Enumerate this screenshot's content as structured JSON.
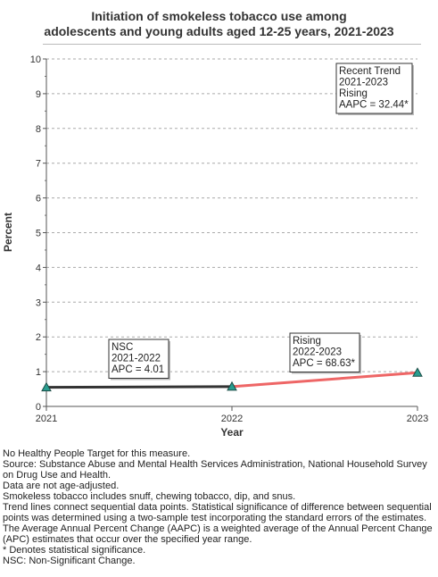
{
  "title_lines": [
    "Initiation of smokeless tobacco use among",
    "adolescents and young adults aged 12-25 years, 2021-2023"
  ],
  "chart_data": {
    "type": "line",
    "title": "Initiation of smokeless tobacco use among adolescents and young adults aged 12-25 years, 2021-2023",
    "xlabel": "Year",
    "ylabel": "Percent",
    "x": [
      2021,
      2022,
      2023
    ],
    "values": [
      0.55,
      0.57,
      0.97
    ],
    "ylim": [
      0,
      10
    ],
    "yticks": [
      0,
      1,
      2,
      3,
      4,
      5,
      6,
      7,
      8,
      9,
      10
    ],
    "xticks": [
      "2021",
      "2022",
      "2023"
    ],
    "grid": "horizontal dashed",
    "segments": [
      {
        "from": 2021,
        "to": 2022,
        "color": "#333333",
        "label_lines": [
          "NSC",
          "2021-2022",
          "APC =  4.01"
        ]
      },
      {
        "from": 2022,
        "to": 2023,
        "color": "#ee6666",
        "label_lines": [
          "Rising",
          "2022-2023",
          "APC = 68.63*"
        ]
      }
    ],
    "trend_box_lines": [
      "Recent Trend",
      "2021-2023",
      "Rising",
      "AAPC = 32.44*"
    ],
    "marker_color": "#2a9d8f"
  },
  "notes": [
    "No Healthy People Target for this measure.",
    "Source: Substance Abuse and Mental Health Services Administration, National Household Survey on Drug Use and Health.",
    "Data are not age-adjusted.",
    "Smokeless tobacco includes snuff, chewing tobacco, dip, and snus.",
    "Trend lines connect sequential data points. Statistical significance of difference between sequential points was determined using a two-sample test incorporating the standard errors of the estimates.",
    "The Average Annual Percent Change (AAPC) is a weighted average of the Annual Percent Change (APC) estimates that occur over the specified year range.",
    "* Denotes statistical significance.",
    "NSC: Non-Significant Change."
  ]
}
